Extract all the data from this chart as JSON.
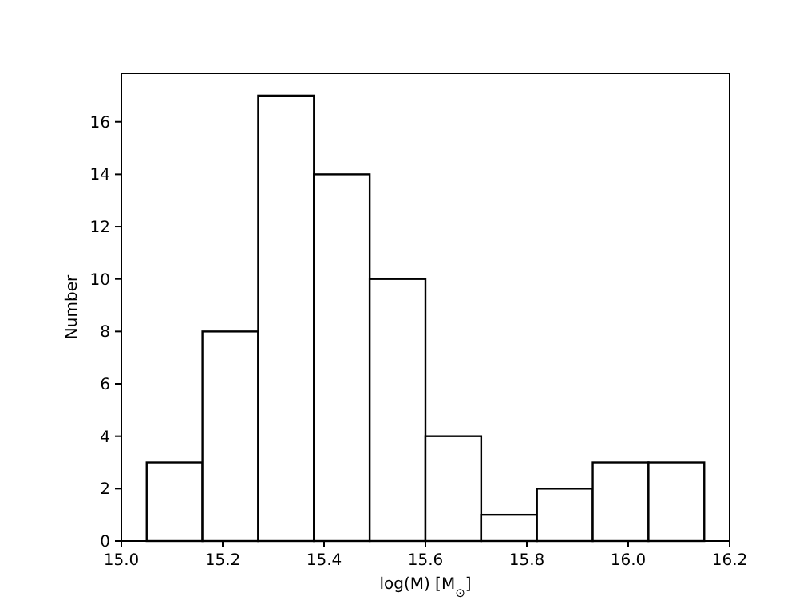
{
  "chart_data": {
    "type": "histogram",
    "xlabel": "log(M) [M$_{⊙}$]",
    "ylabel": "Number",
    "bins": [
      15.05,
      15.16,
      15.27,
      15.38,
      15.49,
      15.6,
      15.71,
      15.82,
      15.93,
      16.04,
      16.15
    ],
    "values": [
      3,
      8,
      17,
      14,
      10,
      4,
      1,
      2,
      3,
      3
    ],
    "color": "#ffffff",
    "xlim": [
      15.0,
      16.2
    ],
    "xticks": [
      {
        "value": 15.0,
        "label": "15.0"
      },
      {
        "value": 15.2,
        "label": "15.2"
      },
      {
        "value": 15.4,
        "label": "15.4"
      },
      {
        "value": 15.6,
        "label": "15.6"
      },
      {
        "value": 15.8,
        "label": "15.8"
      },
      {
        "value": 16.0,
        "label": "16.0"
      },
      {
        "value": 16.2,
        "label": "16.2"
      }
    ],
    "ylim": [
      0,
      17.85
    ],
    "yticks": [
      0,
      2,
      4,
      6,
      8,
      10,
      12,
      14,
      16
    ],
    "grid": false
  }
}
